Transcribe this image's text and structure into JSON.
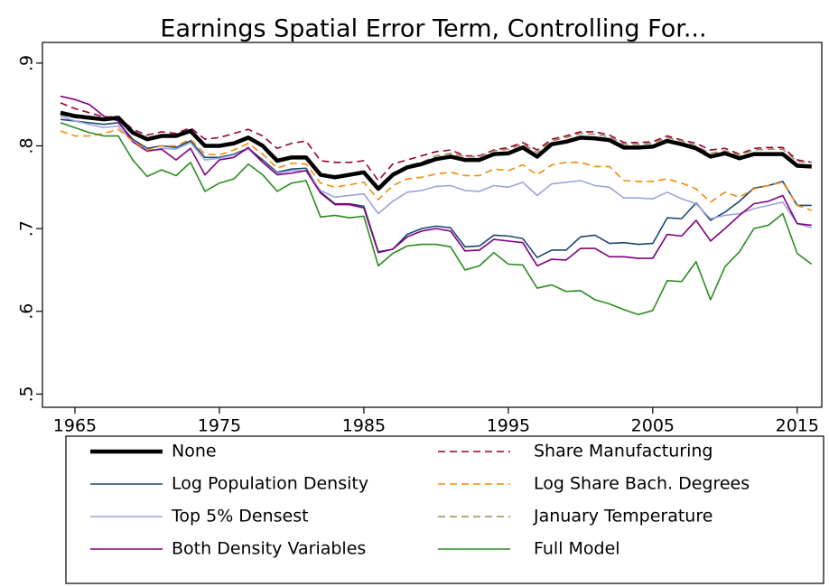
{
  "chart_data": {
    "type": "line",
    "title": "Earnings Spatial Error Term, Controlling For...",
    "x": [
      1964,
      1965,
      1966,
      1967,
      1968,
      1969,
      1970,
      1971,
      1972,
      1973,
      1974,
      1975,
      1976,
      1977,
      1978,
      1979,
      1980,
      1981,
      1982,
      1983,
      1984,
      1985,
      1986,
      1987,
      1988,
      1989,
      1990,
      1991,
      1992,
      1993,
      1994,
      1995,
      1996,
      1997,
      1998,
      1999,
      2000,
      2001,
      2002,
      2003,
      2004,
      2005,
      2006,
      2007,
      2008,
      2009,
      2010,
      2011,
      2012,
      2013,
      2014,
      2015,
      2016
    ],
    "xlim": [
      1962.75,
      2016.7
    ],
    "xticks": [
      1965,
      1975,
      1985,
      1995,
      2005,
      2015
    ],
    "ylim": [
      0.484,
      0.925
    ],
    "yticks": [
      {
        "value": 0.5,
        "label": ".5"
      },
      {
        "value": 0.6,
        "label": ".6"
      },
      {
        "value": 0.7,
        "label": ".7"
      },
      {
        "value": 0.8,
        "label": ".8"
      },
      {
        "value": 0.9,
        "label": ".9"
      }
    ],
    "series": [
      {
        "name": "None",
        "color": "#000000",
        "style": "thick",
        "values": [
          0.84,
          0.836,
          0.834,
          0.832,
          0.834,
          0.816,
          0.808,
          0.812,
          0.812,
          0.818,
          0.8,
          0.8,
          0.803,
          0.81,
          0.8,
          0.782,
          0.786,
          0.786,
          0.765,
          0.762,
          0.765,
          0.768,
          0.748,
          0.765,
          0.774,
          0.778,
          0.784,
          0.787,
          0.783,
          0.783,
          0.79,
          0.791,
          0.798,
          0.787,
          0.802,
          0.805,
          0.81,
          0.809,
          0.807,
          0.798,
          0.798,
          0.799,
          0.806,
          0.802,
          0.797,
          0.787,
          0.791,
          0.785,
          0.79,
          0.79,
          0.79,
          0.776,
          0.775
        ]
      },
      {
        "name": "Log Population Density",
        "color": "#1a476f",
        "style": "solid",
        "values": [
          0.832,
          0.83,
          0.828,
          0.826,
          0.828,
          0.808,
          0.797,
          0.8,
          0.798,
          0.806,
          0.786,
          0.786,
          0.79,
          0.797,
          0.783,
          0.768,
          0.772,
          0.773,
          0.744,
          0.73,
          0.73,
          0.727,
          0.672,
          0.675,
          0.693,
          0.7,
          0.703,
          0.701,
          0.678,
          0.679,
          0.692,
          0.691,
          0.688,
          0.665,
          0.674,
          0.674,
          0.69,
          0.692,
          0.682,
          0.683,
          0.681,
          0.682,
          0.713,
          0.712,
          0.731,
          0.71,
          0.72,
          0.733,
          0.749,
          0.752,
          0.757,
          0.728,
          0.728
        ]
      },
      {
        "name": "Top 5% Densest",
        "color": "#9ea3dc",
        "style": "solid",
        "values": [
          0.836,
          0.83,
          0.826,
          0.822,
          0.824,
          0.805,
          0.793,
          0.797,
          0.796,
          0.804,
          0.783,
          0.785,
          0.789,
          0.796,
          0.78,
          0.767,
          0.77,
          0.77,
          0.746,
          0.738,
          0.74,
          0.742,
          0.718,
          0.733,
          0.744,
          0.746,
          0.751,
          0.752,
          0.746,
          0.745,
          0.752,
          0.75,
          0.756,
          0.74,
          0.754,
          0.756,
          0.758,
          0.752,
          0.75,
          0.737,
          0.737,
          0.736,
          0.744,
          0.736,
          0.73,
          0.712,
          0.716,
          0.718,
          0.724,
          0.728,
          0.732,
          0.706,
          0.701
        ]
      },
      {
        "name": "Both Density Variables",
        "color": "#80007f",
        "style": "solid",
        "values": [
          0.86,
          0.856,
          0.85,
          0.836,
          0.83,
          0.805,
          0.794,
          0.796,
          0.783,
          0.797,
          0.765,
          0.783,
          0.786,
          0.798,
          0.78,
          0.765,
          0.767,
          0.77,
          0.743,
          0.729,
          0.729,
          0.725,
          0.671,
          0.675,
          0.69,
          0.697,
          0.7,
          0.697,
          0.673,
          0.674,
          0.687,
          0.685,
          0.683,
          0.655,
          0.663,
          0.662,
          0.676,
          0.676,
          0.666,
          0.666,
          0.664,
          0.664,
          0.693,
          0.691,
          0.71,
          0.685,
          0.7,
          0.716,
          0.73,
          0.733,
          0.74,
          0.706,
          0.704
        ]
      },
      {
        "name": "Share Manufacturing",
        "color": "#990033",
        "style": "dashed",
        "values": [
          0.852,
          0.845,
          0.84,
          0.835,
          0.835,
          0.82,
          0.813,
          0.817,
          0.815,
          0.822,
          0.808,
          0.81,
          0.815,
          0.82,
          0.812,
          0.797,
          0.803,
          0.806,
          0.782,
          0.78,
          0.78,
          0.782,
          0.758,
          0.778,
          0.783,
          0.788,
          0.793,
          0.795,
          0.788,
          0.788,
          0.795,
          0.798,
          0.804,
          0.795,
          0.808,
          0.812,
          0.817,
          0.817,
          0.813,
          0.804,
          0.804,
          0.805,
          0.812,
          0.807,
          0.803,
          0.795,
          0.797,
          0.79,
          0.797,
          0.798,
          0.798,
          0.783,
          0.78
        ]
      },
      {
        "name": "Log Share Bach. Degrees",
        "color": "#f5890a",
        "style": "dashed",
        "values": [
          0.818,
          0.812,
          0.812,
          0.815,
          0.82,
          0.806,
          0.795,
          0.8,
          0.8,
          0.808,
          0.79,
          0.789,
          0.795,
          0.803,
          0.79,
          0.773,
          0.779,
          0.778,
          0.755,
          0.75,
          0.753,
          0.756,
          0.735,
          0.752,
          0.76,
          0.762,
          0.766,
          0.768,
          0.764,
          0.764,
          0.772,
          0.77,
          0.777,
          0.765,
          0.777,
          0.78,
          0.78,
          0.775,
          0.775,
          0.758,
          0.757,
          0.757,
          0.76,
          0.755,
          0.748,
          0.732,
          0.744,
          0.738,
          0.748,
          0.752,
          0.756,
          0.728,
          0.722
        ]
      },
      {
        "name": "January Temperature",
        "color": "#a38954",
        "style": "dashed",
        "values": [
          0.838,
          0.834,
          0.833,
          0.831,
          0.833,
          0.815,
          0.807,
          0.811,
          0.811,
          0.818,
          0.799,
          0.799,
          0.803,
          0.81,
          0.8,
          0.782,
          0.786,
          0.787,
          0.766,
          0.764,
          0.766,
          0.768,
          0.751,
          0.767,
          0.776,
          0.78,
          0.788,
          0.791,
          0.787,
          0.787,
          0.794,
          0.796,
          0.802,
          0.792,
          0.806,
          0.81,
          0.815,
          0.814,
          0.811,
          0.802,
          0.802,
          0.803,
          0.81,
          0.806,
          0.8,
          0.791,
          0.794,
          0.789,
          0.795,
          0.796,
          0.796,
          0.781,
          0.78
        ]
      },
      {
        "name": "Full Model",
        "color": "#2a8c1e",
        "style": "solid",
        "values": [
          0.828,
          0.822,
          0.816,
          0.812,
          0.812,
          0.783,
          0.763,
          0.771,
          0.764,
          0.78,
          0.745,
          0.755,
          0.76,
          0.778,
          0.765,
          0.745,
          0.755,
          0.758,
          0.714,
          0.716,
          0.713,
          0.715,
          0.655,
          0.67,
          0.679,
          0.681,
          0.681,
          0.678,
          0.65,
          0.655,
          0.671,
          0.657,
          0.656,
          0.628,
          0.632,
          0.624,
          0.625,
          0.614,
          0.609,
          0.602,
          0.596,
          0.601,
          0.637,
          0.636,
          0.66,
          0.614,
          0.654,
          0.672,
          0.7,
          0.704,
          0.718,
          0.67,
          0.657
        ]
      }
    ],
    "legend": "bottom"
  }
}
